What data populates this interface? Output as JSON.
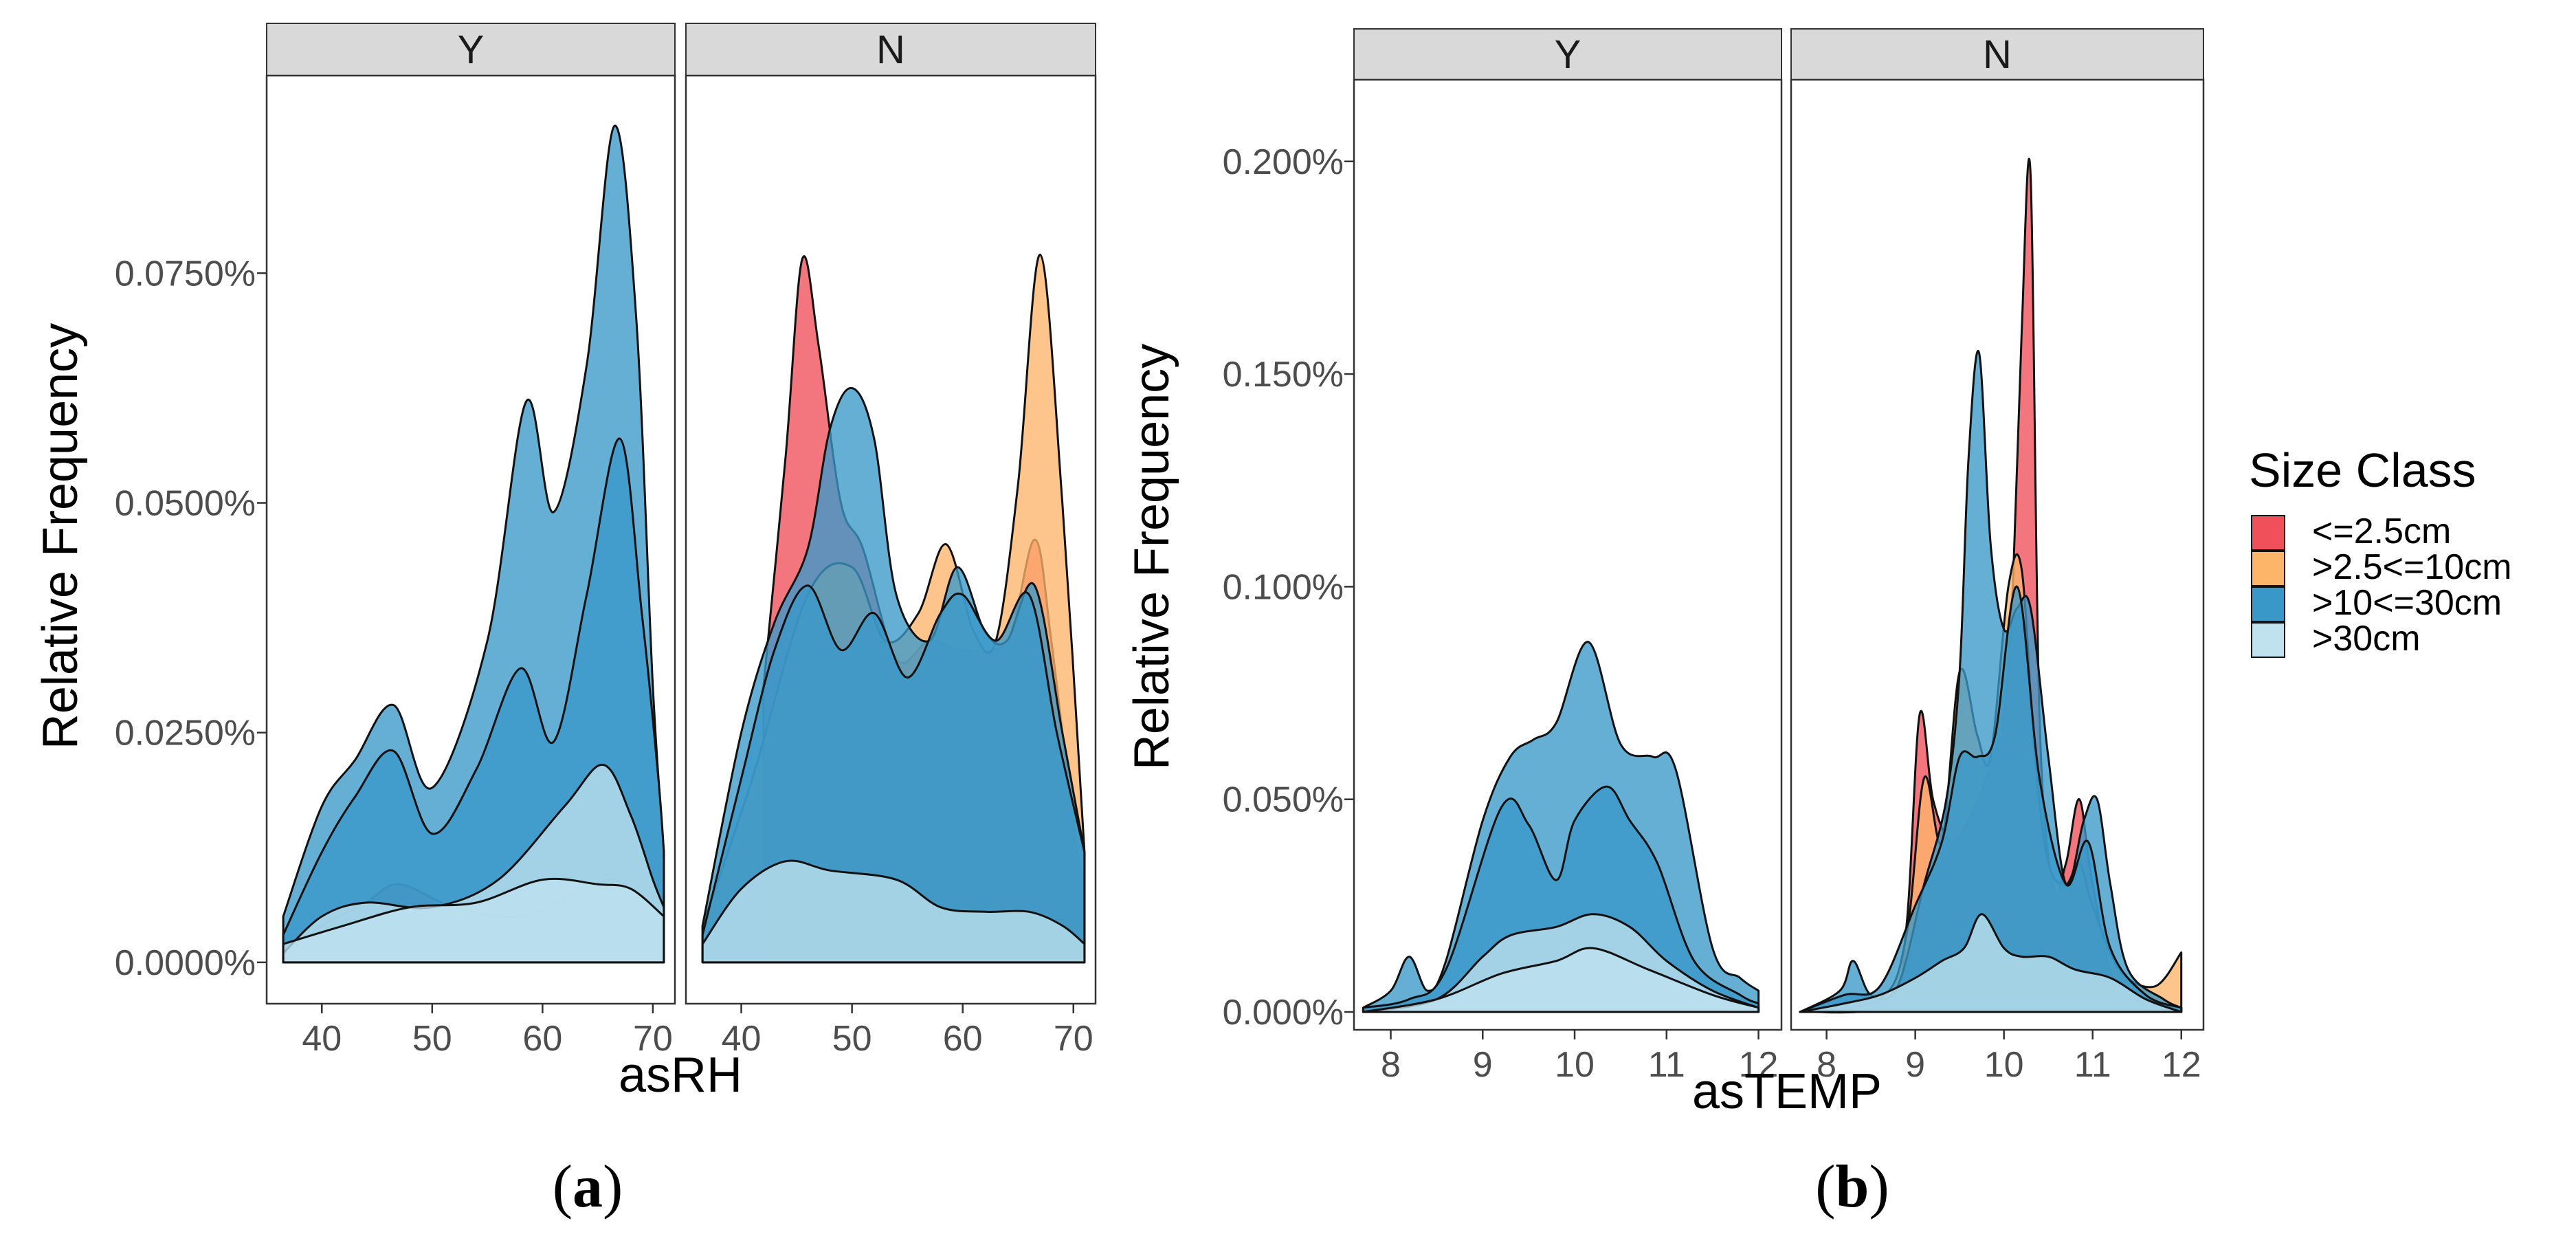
{
  "chart_data": [
    {
      "id": "a",
      "type": "area",
      "subfigure_label": "a",
      "xlabel": "asRH",
      "ylabel": "Relative Frequency",
      "xlim": [
        35,
        72
      ],
      "ylim": [
        -0.0045,
        0.0965
      ],
      "x_ticks": [
        40,
        50,
        60,
        70
      ],
      "x_tick_labels": [
        "40",
        "50",
        "60",
        "70"
      ],
      "y_ticks": [
        0,
        0.025,
        0.05,
        0.075
      ],
      "y_tick_labels": [
        "0.0000%",
        "0.0250%",
        "0.0500%",
        "0.0750%"
      ],
      "facets": [
        {
          "label": "Y",
          "series": [
            {
              "class": "<=2.5cm",
              "x": [
                36.5,
                40,
                44,
                47,
                52,
                58,
                62,
                66,
                68,
                70,
                71
              ],
              "y": [
                0.001,
                0.004,
                0.0065,
                0.0085,
                0.006,
                0.005,
                0.007,
                0.009,
                0.008,
                0.006,
                0.004
              ]
            },
            {
              "class": ">10<=30cm",
              "x": [
                36.5,
                40,
                43,
                46.5,
                50,
                55,
                58.5,
                61,
                64,
                66.5,
                68.5,
                70,
                71
              ],
              "y": [
                0.005,
                0.017,
                0.022,
                0.028,
                0.019,
                0.035,
                0.061,
                0.049,
                0.065,
                0.091,
                0.07,
                0.03,
                0.012
              ]
            },
            {
              "class": ">10<=30cm",
              "x": [
                36.5,
                40,
                43,
                46.5,
                50,
                54,
                58,
                61,
                64,
                67,
                69,
                70.5,
                71
              ],
              "y": [
                0.003,
                0.012,
                0.018,
                0.023,
                0.014,
                0.021,
                0.032,
                0.024,
                0.04,
                0.057,
                0.038,
                0.02,
                0.012
              ]
            },
            {
              "class": ">30cm",
              "x": [
                36.5,
                40,
                44,
                50,
                56,
                62,
                65.5,
                68,
                70,
                71
              ],
              "y": [
                0.001,
                0.005,
                0.0065,
                0.006,
                0.009,
                0.017,
                0.0215,
                0.016,
                0.009,
                0.006
              ]
            },
            {
              "class": ">30cm",
              "x": [
                36.5,
                42,
                48,
                54,
                60,
                65,
                68,
                71
              ],
              "y": [
                0.002,
                0.004,
                0.006,
                0.0065,
                0.009,
                0.0085,
                0.008,
                0.005
              ]
            }
          ]
        },
        {
          "label": "N",
          "series": [
            {
              "class": "<=2.5cm",
              "x": [
                42,
                44,
                45.5,
                47,
                49,
                51,
                54,
                57,
                60,
                64,
                66.5,
                68,
                70,
                71
              ],
              "y": [
                0.03,
                0.055,
                0.0765,
                0.067,
                0.05,
                0.045,
                0.033,
                0.035,
                0.034,
                0.035,
                0.046,
                0.035,
                0.015,
                0.008
              ]
            },
            {
              "class": ">2.5<=10cm",
              "x": [
                36.5,
                41,
                46,
                50,
                53,
                56,
                58.5,
                61,
                63,
                65,
                67,
                69,
                71
              ],
              "y": [
                0.004,
                0.02,
                0.04,
                0.043,
                0.035,
                0.038,
                0.0455,
                0.036,
                0.035,
                0.052,
                0.077,
                0.05,
                0.012
              ]
            },
            {
              "class": ">10<=30cm",
              "x": [
                36.5,
                40,
                43,
                46,
                48,
                50,
                52,
                54,
                57,
                59.5,
                62,
                64,
                66.5,
                69,
                71
              ],
              "y": [
                0.004,
                0.025,
                0.037,
                0.045,
                0.058,
                0.0625,
                0.057,
                0.04,
                0.035,
                0.043,
                0.036,
                0.035,
                0.041,
                0.025,
                0.012
              ]
            },
            {
              "class": ">10<=30cm",
              "x": [
                36.5,
                40,
                43,
                46,
                49,
                52,
                55,
                58,
                60,
                63,
                66,
                68.5,
                71
              ],
              "y": [
                0.003,
                0.02,
                0.034,
                0.041,
                0.034,
                0.038,
                0.031,
                0.038,
                0.04,
                0.035,
                0.04,
                0.025,
                0.012
              ]
            },
            {
              "class": ">30cm",
              "x": [
                36.5,
                40,
                44,
                48,
                54,
                58,
                62,
                66,
                69,
                71
              ],
              "y": [
                0.002,
                0.008,
                0.011,
                0.01,
                0.009,
                0.006,
                0.0055,
                0.0055,
                0.004,
                0.002
              ]
            }
          ]
        }
      ]
    },
    {
      "id": "b",
      "type": "area",
      "subfigure_label": "b",
      "xlabel": "asTEMP",
      "ylabel": "Relative Frequency",
      "xlim": [
        7.6,
        12.25
      ],
      "ylim": [
        -0.0042,
        0.2192
      ],
      "x_ticks": [
        8,
        9,
        10,
        11,
        12
      ],
      "x_tick_labels": [
        "8",
        "9",
        "10",
        "11",
        "12"
      ],
      "y_ticks": [
        0,
        0.05,
        0.1,
        0.15,
        0.2
      ],
      "y_tick_labels": [
        "0.000%",
        "0.050%",
        "0.100%",
        "0.150%",
        "0.200%"
      ],
      "facets": [
        {
          "label": "Y",
          "series": [
            {
              "class": ">10<=30cm",
              "x": [
                7.7,
                8.0,
                8.2,
                8.4,
                8.6,
                9.0,
                9.3,
                9.55,
                9.8,
                10.15,
                10.5,
                10.85,
                11.1,
                11.5,
                11.8,
                12.0
              ],
              "y": [
                0.001,
                0.005,
                0.013,
                0.005,
                0.012,
                0.045,
                0.06,
                0.064,
                0.068,
                0.087,
                0.063,
                0.06,
                0.057,
                0.015,
                0.008,
                0.005
              ]
            },
            {
              "class": ">10<=30cm",
              "x": [
                7.7,
                8.2,
                8.6,
                9.2,
                9.5,
                9.8,
                10.0,
                10.35,
                10.6,
                10.9,
                11.3,
                11.8,
                12.0
              ],
              "y": [
                0.001,
                0.003,
                0.01,
                0.048,
                0.044,
                0.031,
                0.045,
                0.053,
                0.045,
                0.035,
                0.012,
                0.004,
                0.002
              ]
            },
            {
              "class": ">30cm",
              "x": [
                7.7,
                8.5,
                9.0,
                9.3,
                9.8,
                10.2,
                10.6,
                11.0,
                11.5,
                12.0
              ],
              "y": [
                0.0,
                0.003,
                0.013,
                0.018,
                0.02,
                0.023,
                0.02,
                0.012,
                0.005,
                0.001
              ]
            },
            {
              "class": ">30cm",
              "x": [
                7.7,
                8.5,
                9.2,
                9.8,
                10.2,
                10.8,
                11.5,
                12.0
              ],
              "y": [
                0.0,
                0.003,
                0.009,
                0.012,
                0.015,
                0.01,
                0.004,
                0.001
              ]
            }
          ]
        },
        {
          "label": "N",
          "series": [
            {
              "class": "<=2.5cm",
              "x": [
                7.7,
                8.7,
                8.9,
                9.05,
                9.2,
                9.4,
                9.6,
                9.8,
                10.0,
                10.1,
                10.2,
                10.3,
                10.4,
                10.55,
                10.7,
                10.85,
                11.0,
                11.3,
                12.0
              ],
              "y": [
                0.0,
                0.002,
                0.02,
                0.07,
                0.05,
                0.04,
                0.045,
                0.055,
                0.07,
                0.1,
                0.16,
                0.197,
                0.07,
                0.03,
                0.035,
                0.05,
                0.03,
                0.005,
                0.001
              ]
            },
            {
              "class": ">2.5<=10cm",
              "x": [
                7.7,
                8.6,
                8.9,
                9.1,
                9.3,
                9.5,
                9.7,
                9.85,
                10.05,
                10.2,
                10.35,
                10.5,
                10.7,
                10.85,
                11.0,
                11.3,
                11.7,
                12.0
              ],
              "y": [
                0.0,
                0.003,
                0.018,
                0.055,
                0.04,
                0.08,
                0.065,
                0.06,
                0.1,
                0.104,
                0.06,
                0.035,
                0.03,
                0.035,
                0.025,
                0.01,
                0.006,
                0.014
              ]
            },
            {
              "class": ">10<=30cm",
              "x": [
                7.7,
                8.15,
                8.3,
                8.5,
                8.8,
                9.1,
                9.35,
                9.5,
                9.6,
                9.72,
                9.85,
                10.0,
                10.15,
                10.3,
                10.5,
                10.7,
                10.9,
                11.05,
                11.2,
                11.4,
                11.8,
                12.0
              ],
              "y": [
                0.0,
                0.005,
                0.012,
                0.004,
                0.006,
                0.03,
                0.05,
                0.08,
                0.13,
                0.155,
                0.11,
                0.09,
                0.095,
                0.095,
                0.06,
                0.03,
                0.045,
                0.05,
                0.03,
                0.01,
                0.003,
                0.001
              ]
            },
            {
              "class": ">10<=30cm",
              "x": [
                7.7,
                8.2,
                8.6,
                9.0,
                9.3,
                9.5,
                9.7,
                9.9,
                10.15,
                10.4,
                10.7,
                10.95,
                11.2,
                11.6,
                12.0
              ],
              "y": [
                0.0,
                0.004,
                0.006,
                0.025,
                0.04,
                0.06,
                0.06,
                0.065,
                0.1,
                0.055,
                0.03,
                0.04,
                0.015,
                0.004,
                0.001
              ]
            },
            {
              "class": ">30cm",
              "x": [
                7.7,
                8.2,
                8.6,
                9.0,
                9.3,
                9.55,
                9.75,
                10.0,
                10.2,
                10.5,
                10.8,
                11.2,
                11.6,
                12.0
              ],
              "y": [
                0.0,
                0.002,
                0.004,
                0.008,
                0.012,
                0.015,
                0.023,
                0.015,
                0.013,
                0.013,
                0.01,
                0.008,
                0.003,
                0.0
              ]
            }
          ]
        }
      ]
    }
  ],
  "legend": {
    "title": "Size Class",
    "entries": [
      {
        "label": "<=2.5cm",
        "color": "#f0505a"
      },
      {
        "label": ">2.5<=10cm",
        "color": "#fdb56a"
      },
      {
        "label": ">10<=30cm",
        "color": "#3a98c9"
      },
      {
        "label": ">30cm",
        "color": "#bfe2ee"
      }
    ]
  },
  "colors": {
    "<=2.5cm": "#f0505a",
    ">2.5<=10cm": "#fdb56a",
    ">10<=30cm": "#3a98c9",
    ">30cm": "#bfe2ee",
    "strip_bg": "#d9d9d9",
    "text": "#4d4d4d"
  }
}
